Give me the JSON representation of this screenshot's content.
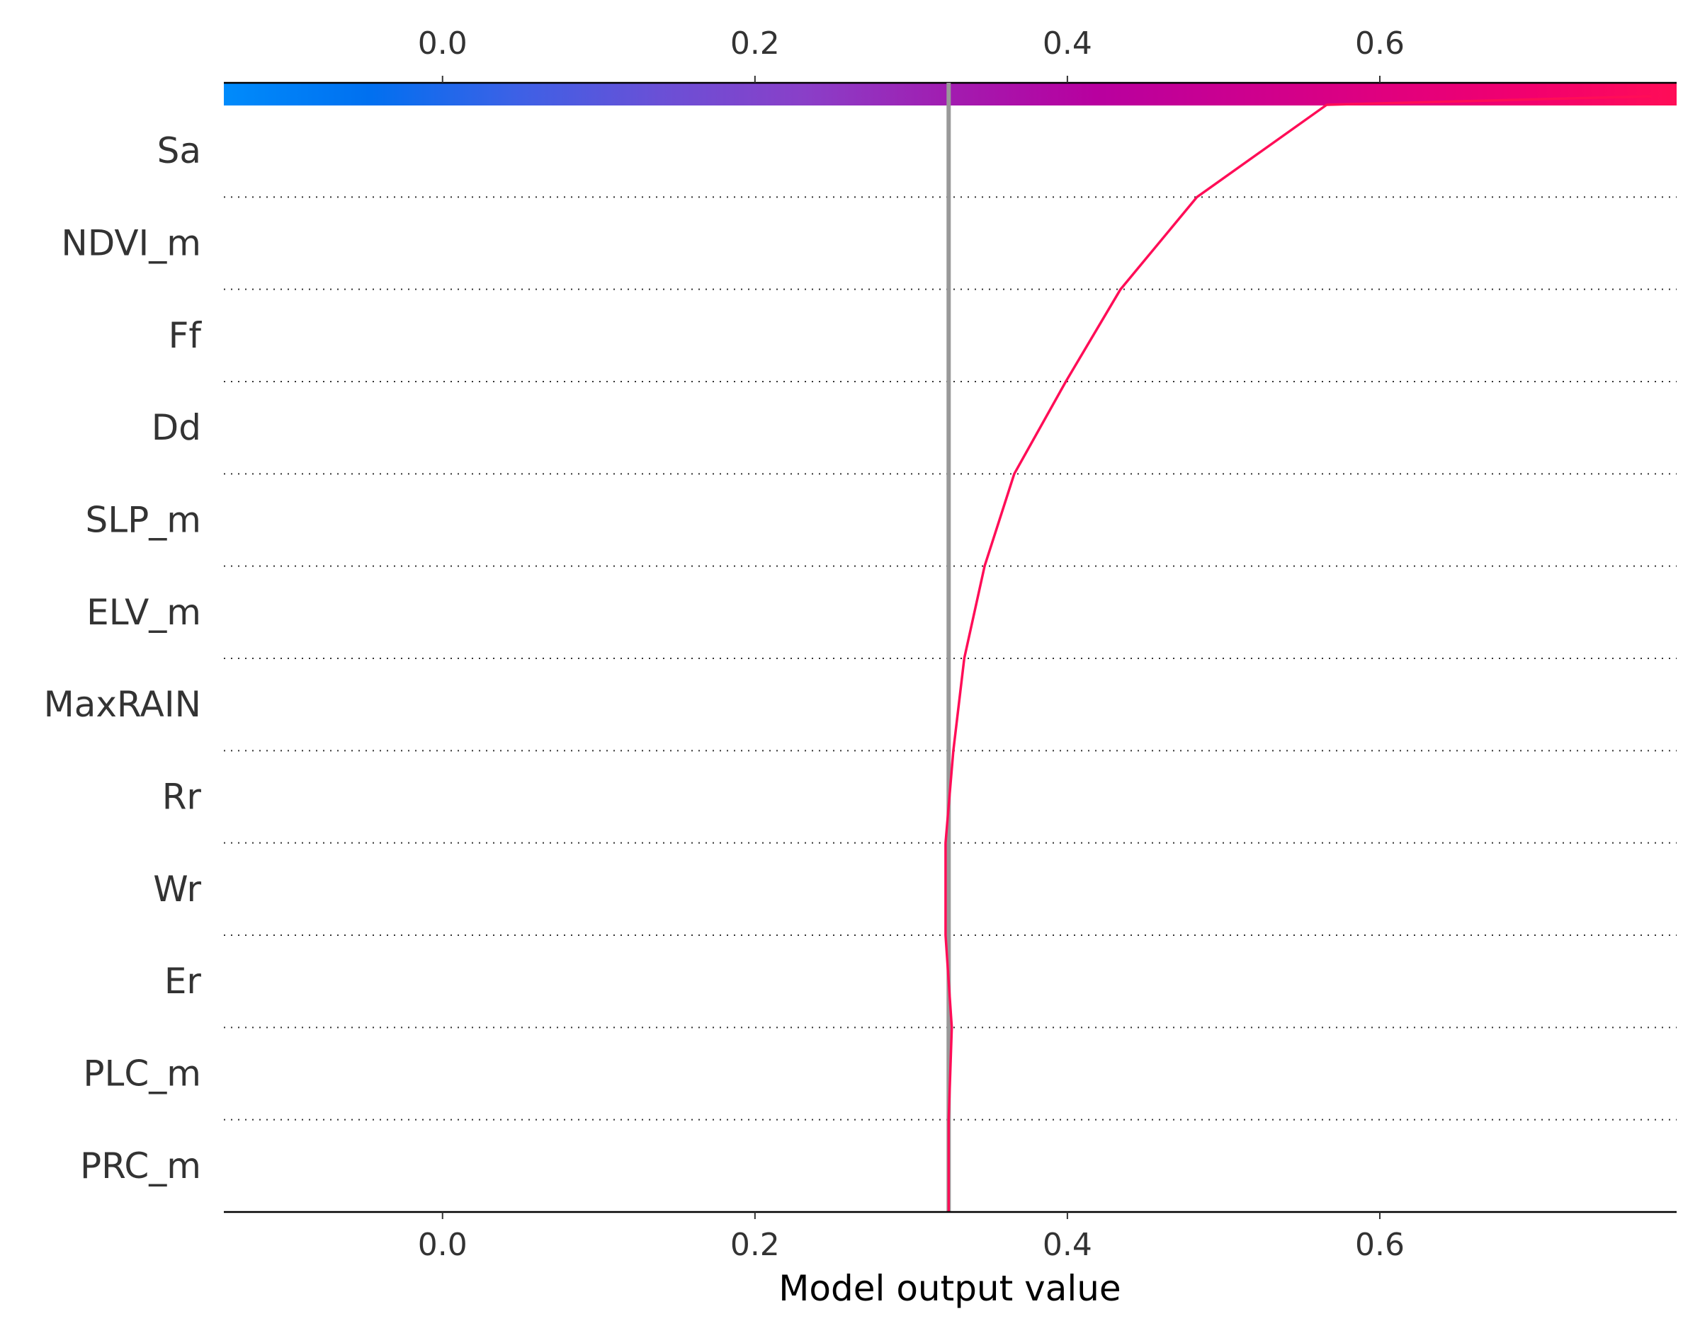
{
  "chart_data": {
    "type": "line",
    "chart_kind": "decision-plot",
    "xlabel": "Model output value",
    "xlim": [
      -0.14,
      0.79
    ],
    "xticks": [
      0.0,
      0.2,
      0.4,
      0.6
    ],
    "xtick_labels": [
      "0.0",
      "0.2",
      "0.4",
      "0.6"
    ],
    "base_value": 0.324,
    "features": [
      "Sa",
      "NDVI_m",
      "Ff",
      "Dd",
      "SLP_m",
      "ELV_m",
      "MaxRAIN",
      "Rr",
      "Wr",
      "Er",
      "PLC_m",
      "PRC_m"
    ],
    "path": [
      0.324,
      0.324,
      0.326,
      0.322,
      0.322,
      0.327,
      0.334,
      0.347,
      0.366,
      0.399,
      0.434,
      0.483,
      0.566,
      0.774
    ],
    "line_color": "#ff0d57",
    "base_line_color": "#999999",
    "colorbar": {
      "range": [
        -0.14,
        0.79
      ],
      "ticks": [
        0.0,
        0.2,
        0.4,
        0.6
      ],
      "tick_labels": [
        "0.0",
        "0.2",
        "0.4",
        "0.6"
      ],
      "colors": [
        "#008bfb",
        "#0070f0",
        "#3c61e6",
        "#6a50d6",
        "#8a3fc8",
        "#a21cb0",
        "#b8009f",
        "#cc008f",
        "#e0007e",
        "#f2006e",
        "#ff0d57"
      ]
    },
    "grid": "dotted horizontal",
    "legend": "none"
  }
}
